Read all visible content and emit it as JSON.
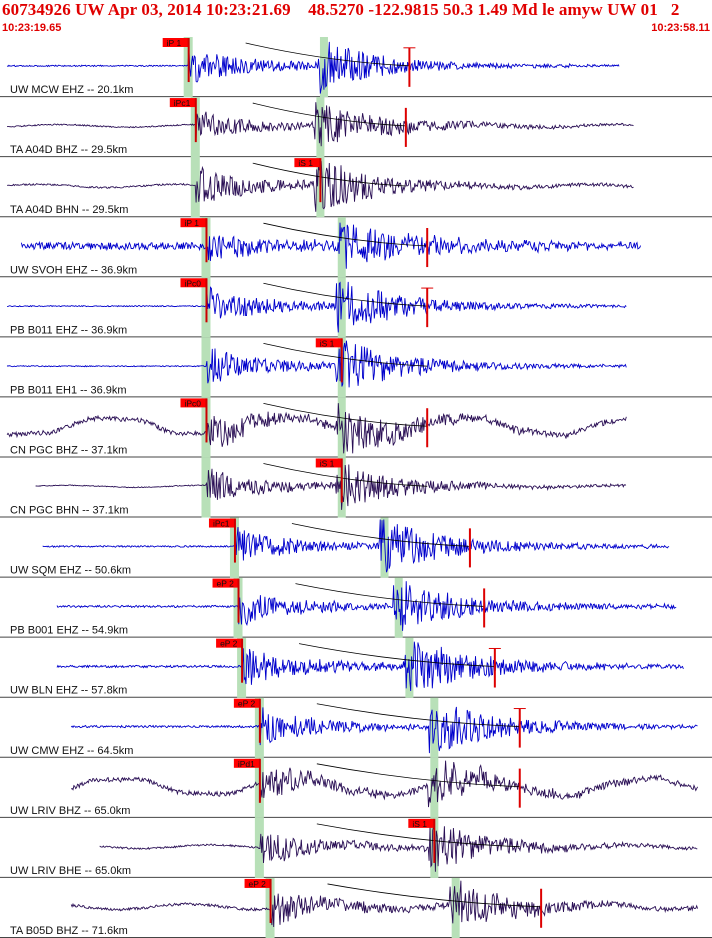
{
  "header": {
    "title": "60734926 UW Apr 03, 2014 10:23:21.69    48.5270 -122.9815 50.3 1.49 Md le amyw UW 01   2",
    "time_start": "10:23:19.65",
    "time_end": "10:23:58.11"
  },
  "colors": {
    "header_text": "#e00000",
    "trace_blue": "#0000cc",
    "trace_purple": "#2a0f55",
    "pick_box": "#ff0000",
    "window_band": "#b8e0b8",
    "divider": "#444444"
  },
  "traces": [
    {
      "label": "UW MCW EHZ -- 20.1km",
      "pick": "iP 1",
      "color": "blue",
      "start": 0.01,
      "end": 0.87,
      "p": 0.265,
      "s": 0.455,
      "amp": 0.45,
      "wave": "hf",
      "noise": 0.05,
      "coda": 0.47,
      "arrival_label": "S",
      "seed": 1,
      "extra_pick": "red-cross"
    },
    {
      "label": "TA A04D BHZ -- 29.5km",
      "pick": "iPc1",
      "color": "purple",
      "start": 0.01,
      "end": 0.89,
      "p": 0.275,
      "s": 0.45,
      "amp": 0.35,
      "wave": "bb",
      "noise": 0.12,
      "coda": 0.62,
      "seed": 2,
      "extra_pick": "red-bar"
    },
    {
      "label": "TA A04D BHN -- 29.5km",
      "pick": "iS 1",
      "color": "purple",
      "start": 0.01,
      "end": 0.89,
      "p": 0.275,
      "s": 0.45,
      "amp": 0.45,
      "wave": "bb",
      "noise": 0.12,
      "coda": 0.5,
      "seed": 3,
      "pick_at": "s"
    },
    {
      "label": "UW SVOH EHZ -- 36.9km",
      "pick": "iP 1",
      "color": "blue",
      "start": 0.03,
      "end": 0.9,
      "p": 0.29,
      "s": 0.48,
      "amp": 0.35,
      "wave": "hf",
      "noise": 0.35,
      "coda": 0.75,
      "seed": 4,
      "extra_pick": "red-bar"
    },
    {
      "label": "PB B011 EHZ -- 36.9km",
      "pick": "iPc0",
      "color": "blue",
      "start": 0.01,
      "end": 0.88,
      "p": 0.29,
      "s": 0.48,
      "amp": 0.45,
      "wave": "hf",
      "noise": 0.04,
      "coda": 0.55,
      "seed": 5,
      "extra_pick": "red-cross"
    },
    {
      "label": "PB B011 EH1 -- 36.9km",
      "pick": "iS 1",
      "color": "blue",
      "start": 0.01,
      "end": 0.88,
      "p": 0.29,
      "s": 0.48,
      "amp": 0.45,
      "wave": "hf",
      "noise": 0.04,
      "coda": 0.55,
      "seed": 6,
      "pick_at": "s"
    },
    {
      "label": "CN PGC BHZ -- 37.1km",
      "pick": "iPc0",
      "color": "purple",
      "start": 0.01,
      "end": 0.88,
      "p": 0.29,
      "s": 0.48,
      "amp": 0.4,
      "wave": "lp",
      "noise": 0.4,
      "coda": 0.5,
      "seed": 7,
      "extra_pick": "red-bar"
    },
    {
      "label": "CN PGC BHN -- 37.1km",
      "pick": "iS 1",
      "color": "purple",
      "start": 0.05,
      "end": 0.88,
      "p": 0.29,
      "s": 0.48,
      "amp": 0.4,
      "wave": "bb",
      "noise": 0.08,
      "coda": 0.5,
      "seed": 8,
      "pick_at": "s"
    },
    {
      "label": "UW SQM EHZ -- 50.6km",
      "pick": "iPc1",
      "color": "blue",
      "start": 0.06,
      "end": 0.94,
      "p": 0.33,
      "s": 0.54,
      "amp": 0.45,
      "wave": "hf",
      "noise": 0.06,
      "coda": 0.6,
      "seed": 9,
      "extra_pick": "red-bar"
    },
    {
      "label": "PB B001 EHZ -- 54.9km",
      "pick": "eP 2",
      "color": "blue",
      "start": 0.08,
      "end": 0.95,
      "p": 0.335,
      "s": 0.56,
      "amp": 0.45,
      "wave": "hf",
      "noise": 0.08,
      "coda": 0.6,
      "seed": 10,
      "extra_pick": "red-bar"
    },
    {
      "label": "UW BLN EHZ -- 57.8km",
      "pick": "eP 2",
      "color": "blue",
      "start": 0.08,
      "end": 0.96,
      "p": 0.34,
      "s": 0.575,
      "amp": 0.48,
      "wave": "hf",
      "noise": 0.08,
      "coda": 0.6,
      "seed": 11,
      "extra_pick": "red-cross"
    },
    {
      "label": "UW CMW EHZ -- 64.5km",
      "pick": "eP 2",
      "color": "blue",
      "start": 0.1,
      "end": 0.98,
      "p": 0.365,
      "s": 0.61,
      "amp": 0.45,
      "wave": "hf",
      "noise": 0.08,
      "coda": 0.6,
      "seed": 12,
      "extra_pick": "red-cross"
    },
    {
      "label": "UW LRIV BHZ -- 65.0km",
      "pick": "iPd1",
      "color": "purple",
      "start": 0.1,
      "end": 0.98,
      "p": 0.365,
      "s": 0.61,
      "amp": 0.42,
      "wave": "lp",
      "noise": 0.35,
      "coda": 0.5,
      "seed": 13,
      "extra_pick": "red-bar"
    },
    {
      "label": "UW LRIV BHE -- 65.0km",
      "pick": "iS 1",
      "color": "purple",
      "start": 0.14,
      "end": 0.98,
      "p": 0.365,
      "s": 0.61,
      "amp": 0.4,
      "wave": "bb",
      "noise": 0.15,
      "coda": 0.55,
      "seed": 14,
      "pick_at": "s"
    },
    {
      "label": "TA B05D BHZ -- 71.6km",
      "pick": "eP 2",
      "color": "purple",
      "start": 0.1,
      "end": 0.98,
      "p": 0.38,
      "s": 0.64,
      "amp": 0.45,
      "wave": "bb",
      "noise": 0.2,
      "coda": 0.5,
      "seed": 15,
      "extra_pick": "red-bar"
    }
  ]
}
